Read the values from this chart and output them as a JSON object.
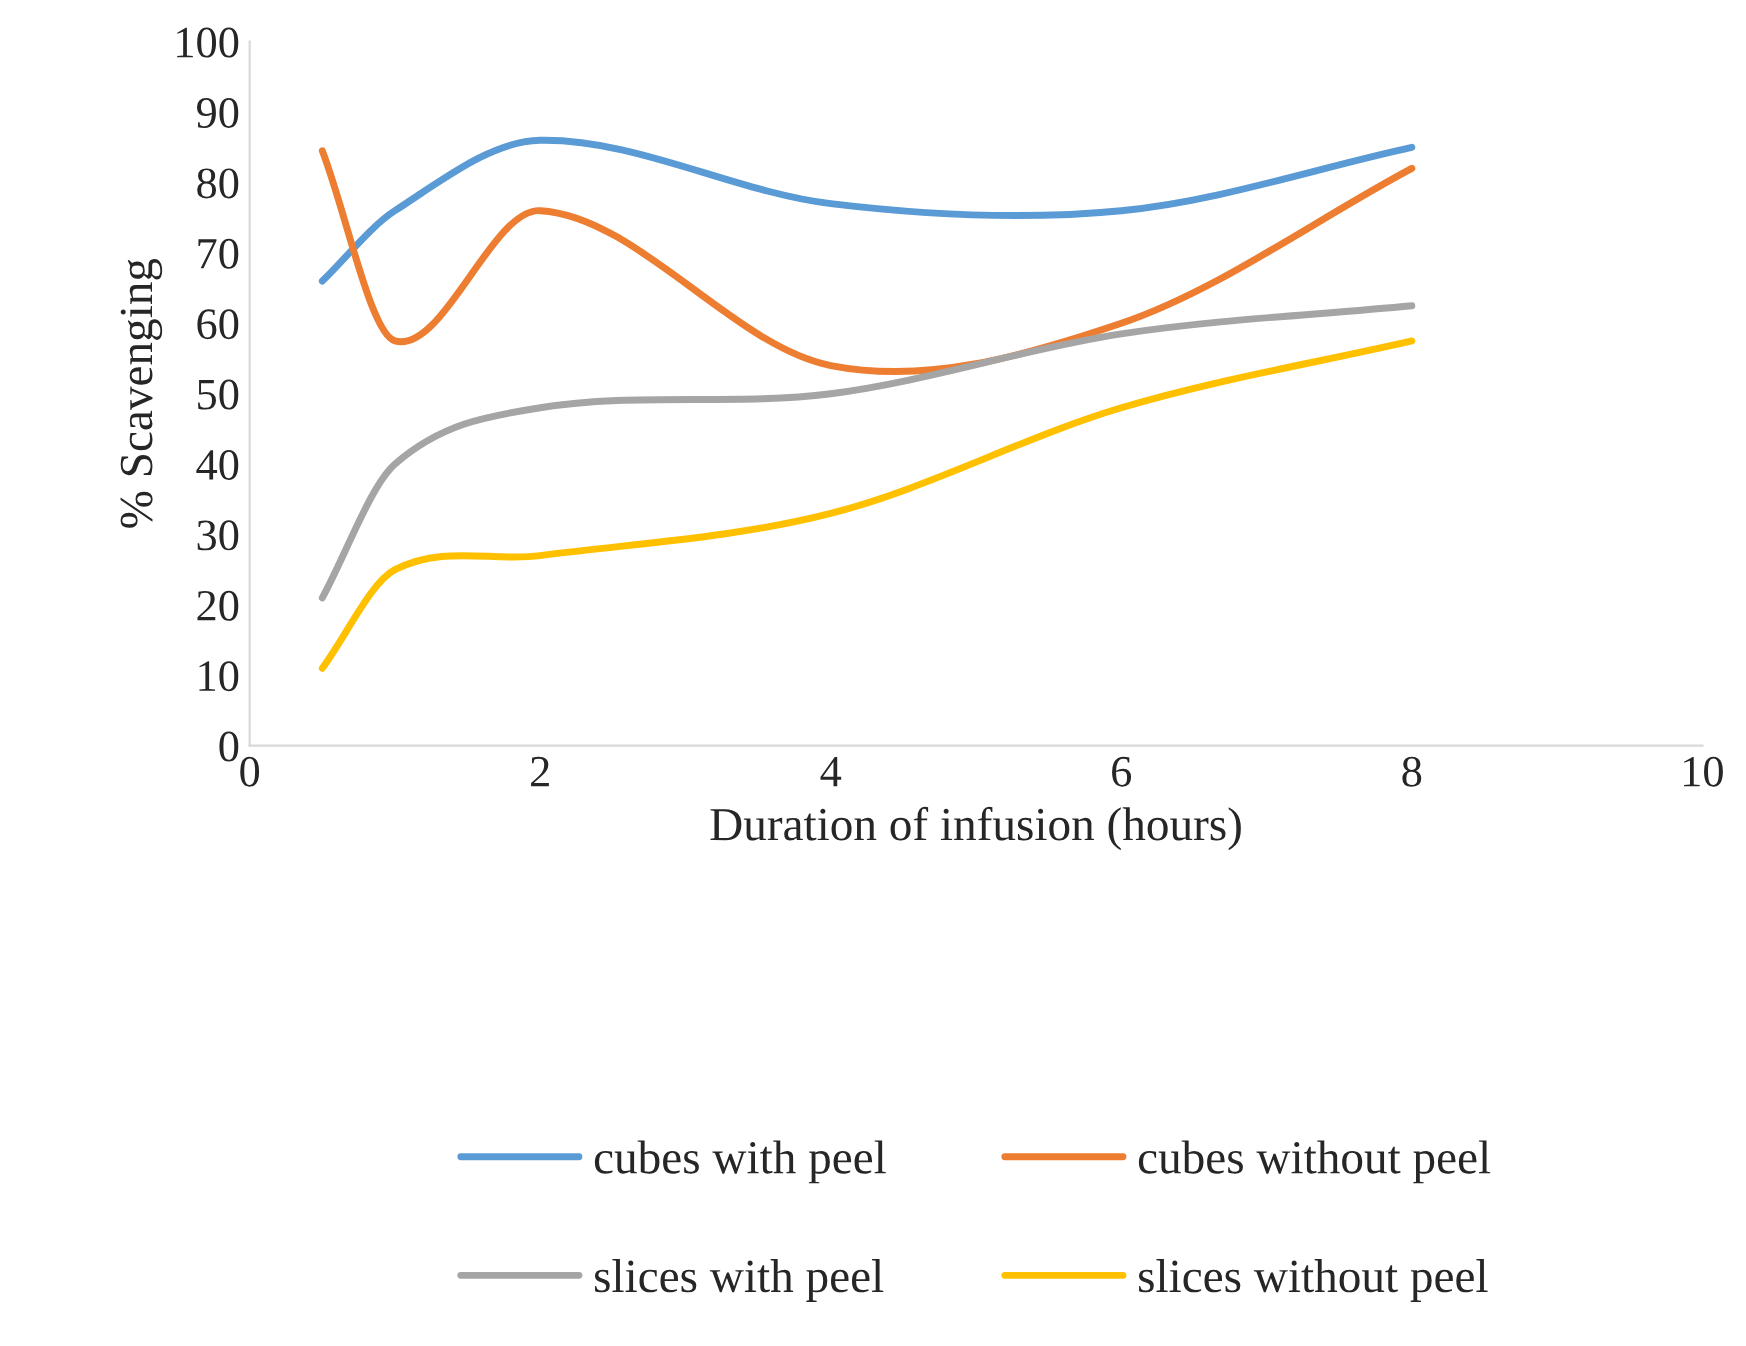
{
  "chart_data": {
    "type": "line",
    "xlabel": "Duration of infusion (hours)",
    "ylabel": "% Scavenging",
    "x": [
      0.5,
      1,
      2,
      4,
      6,
      8
    ],
    "series": [
      {
        "name": "cubes with peel",
        "color": "#5b9bd5",
        "values": [
          66,
          76,
          86,
          77,
          76,
          85
        ]
      },
      {
        "name": "cubes without peel",
        "color": "#ed7d31",
        "values": [
          84.5,
          57.5,
          76,
          54,
          60,
          82
        ]
      },
      {
        "name": "slices with peel",
        "color": "#a5a5a5",
        "values": [
          21,
          40,
          48,
          50,
          58.5,
          62.5
        ]
      },
      {
        "name": "slices without peel",
        "color": "#ffc000",
        "values": [
          11,
          25,
          27,
          33,
          48,
          57.5
        ]
      }
    ],
    "xlim": [
      0,
      10
    ],
    "xticks": [
      0,
      2,
      4,
      6,
      8,
      10
    ],
    "ylim": [
      0,
      100
    ],
    "yticks": [
      0,
      10,
      20,
      30,
      40,
      50,
      60,
      70,
      80,
      90,
      100
    ],
    "grid": false,
    "legend": "bottom",
    "line_style": "solid"
  }
}
